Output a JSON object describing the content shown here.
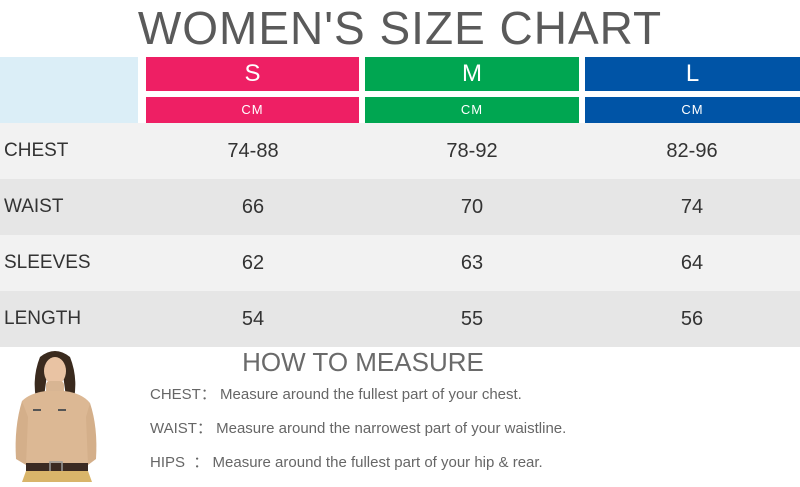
{
  "title": "WOMEN'S SIZE CHART",
  "sizes": [
    {
      "label": "S",
      "unit": "CM",
      "color": "#ee1f64"
    },
    {
      "label": "M",
      "unit": "CM",
      "color": "#00a651"
    },
    {
      "label": "L",
      "unit": "CM",
      "color": "#0054a6"
    }
  ],
  "rows": [
    {
      "label": "CHEST",
      "values": [
        "74-88",
        "78-92",
        "82-96"
      ]
    },
    {
      "label": "WAIST",
      "values": [
        "66",
        "70",
        "74"
      ]
    },
    {
      "label": "SLEEVES",
      "values": [
        "62",
        "63",
        "64"
      ]
    },
    {
      "label": "LENGTH",
      "values": [
        "54",
        "55",
        "56"
      ]
    }
  ],
  "row_colors": [
    "#f2f2f2",
    "#e6e6e6"
  ],
  "header_blank_color": "#dbeef7",
  "measure": {
    "title": "HOW TO MEASURE",
    "lines": [
      {
        "label": "CHEST：",
        "text": "Measure around the fullest part of your chest."
      },
      {
        "label": "WAIST：",
        "text": "Measure around the narrowest part of your waistline."
      },
      {
        "label": "HIPS  ：",
        "text": "Measure around the fullest part of your hip & rear."
      }
    ]
  },
  "model_image": "model-in-beige-turtleneck"
}
